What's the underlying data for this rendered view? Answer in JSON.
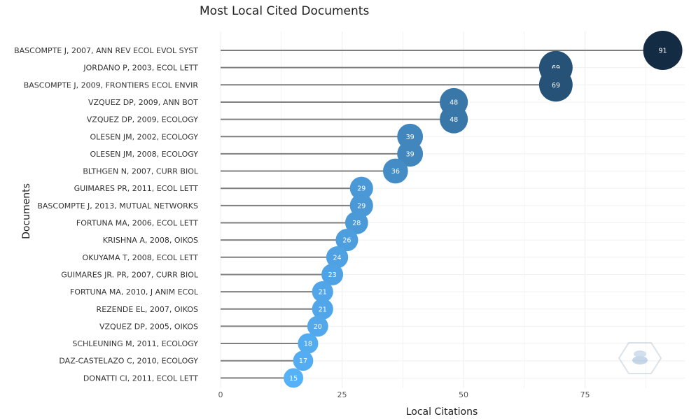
{
  "chart_data": {
    "type": "lollipop",
    "title": "Most Local Cited Documents",
    "xlabel": "Local Citations",
    "ylabel": "Documents",
    "xlim": [
      0,
      95
    ],
    "xticks": [
      0,
      25,
      50,
      75
    ],
    "grid": true,
    "categories": [
      "BASCOMPTE J, 2007, ANN REV ECOL EVOL SYST",
      "JORDANO P, 2003, ECOL LETT",
      "BASCOMPTE J, 2009, FRONTIERS ECOL ENVIR",
      "VZQUEZ DP, 2009, ANN BOT",
      "VZQUEZ DP, 2009, ECOLOGY",
      "OLESEN JM, 2002, ECOLOGY",
      "OLESEN JM, 2008, ECOLOGY",
      "BLTHGEN N, 2007, CURR BIOL",
      "GUIMARES PR, 2011, ECOL LETT",
      "BASCOMPTE J, 2013, MUTUAL NETWORKS",
      "FORTUNA MA, 2006, ECOL LETT",
      "KRISHNA A, 2008, OIKOS",
      "OKUYAMA T, 2008, ECOL LETT",
      "GUIMARES JR. PR, 2007, CURR BIOL",
      "FORTUNA MA, 2010, J ANIM ECOL",
      "REZENDE EL, 2007, OIKOS",
      "VZQUEZ DP, 2005, OIKOS",
      "SCHLEUNING M, 2011, ECOLOGY",
      "DAZ-CASTELAZO C, 2010, ECOLOGY",
      "DONATTI CI, 2011, ECOL LETT"
    ],
    "values": [
      91,
      69,
      69,
      48,
      48,
      39,
      39,
      36,
      29,
      29,
      28,
      26,
      24,
      23,
      21,
      21,
      20,
      18,
      17,
      15
    ],
    "color_low": "#56b1f7",
    "color_high": "#132b43",
    "stem_color": "#7f7f7f"
  }
}
